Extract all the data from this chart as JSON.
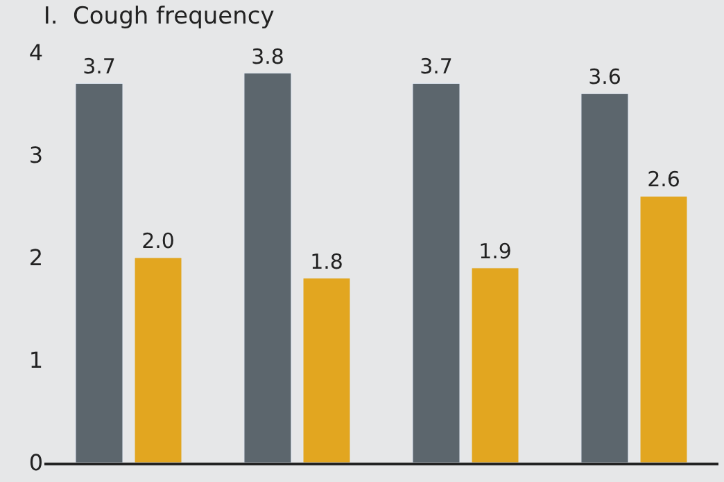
{
  "chart_data": {
    "type": "bar",
    "title": "I.  Cough frequency",
    "categories": [
      null,
      null,
      null,
      null
    ],
    "series": [
      {
        "color": "#5c666d",
        "values": [
          3.7,
          3.8,
          3.7,
          3.6
        ],
        "value_labels": [
          "3.7",
          "3.8",
          "3.7",
          "3.6"
        ]
      },
      {
        "color": "#e2a620",
        "values": [
          2.0,
          1.8,
          1.9,
          2.6
        ],
        "value_labels": [
          "2.0",
          "1.8",
          "1.9",
          "2.6"
        ]
      }
    ],
    "ylim": [
      0,
      4
    ],
    "yticks": [
      0,
      1,
      2,
      3,
      4
    ],
    "grid": false,
    "legend": false
  }
}
